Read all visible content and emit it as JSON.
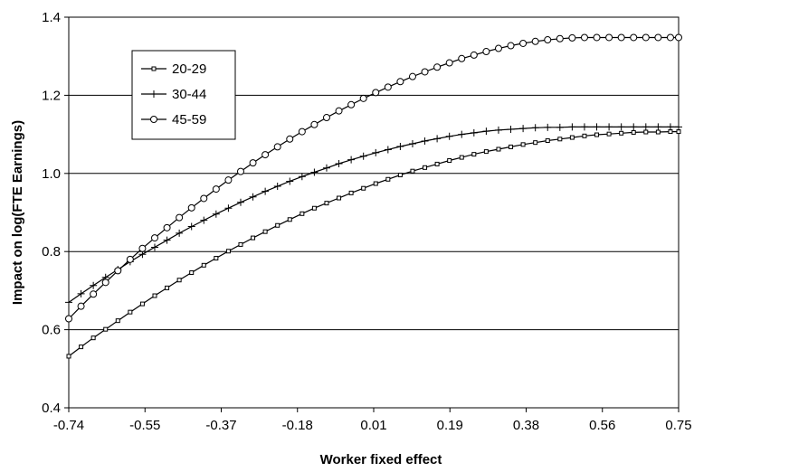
{
  "chart_data": {
    "type": "line",
    "title": "",
    "xlabel": "Worker fixed effect",
    "ylabel": "Impact on log(FTE Earnings)",
    "xlim": [
      -0.74,
      0.75
    ],
    "ylim": [
      0.4,
      1.4
    ],
    "x_ticks": [
      "-0.74",
      "-0.55",
      "-0.37",
      "-0.18",
      "0.01",
      "0.19",
      "0.38",
      "0.56",
      "0.75"
    ],
    "y_ticks": [
      "0.4",
      "0.6",
      "0.8",
      "1.0",
      "1.2",
      "1.4"
    ],
    "grid": "horizontal",
    "legend_position": "top-left",
    "x": [
      -0.74,
      -0.71,
      -0.68,
      -0.65,
      -0.62,
      -0.59,
      -0.56,
      -0.53,
      -0.5,
      -0.47,
      -0.44,
      -0.41,
      -0.38,
      -0.35,
      -0.32,
      -0.29,
      -0.26,
      -0.23,
      -0.2,
      -0.17,
      -0.14,
      -0.11,
      -0.08,
      -0.05,
      -0.02,
      0.01,
      0.04,
      0.07,
      0.1,
      0.13,
      0.16,
      0.19,
      0.22,
      0.25,
      0.28,
      0.31,
      0.34,
      0.37,
      0.4,
      0.43,
      0.46,
      0.49,
      0.52,
      0.55,
      0.58,
      0.61,
      0.64,
      0.67,
      0.7,
      0.73,
      0.75
    ],
    "series": [
      {
        "name": "20-29",
        "marker": "square",
        "values": [
          0.532,
          0.556,
          0.579,
          0.601,
          0.623,
          0.645,
          0.666,
          0.687,
          0.707,
          0.727,
          0.746,
          0.765,
          0.783,
          0.801,
          0.818,
          0.835,
          0.851,
          0.867,
          0.882,
          0.897,
          0.911,
          0.924,
          0.937,
          0.95,
          0.962,
          0.974,
          0.985,
          0.996,
          1.006,
          1.015,
          1.024,
          1.033,
          1.041,
          1.049,
          1.056,
          1.062,
          1.068,
          1.074,
          1.079,
          1.084,
          1.088,
          1.092,
          1.096,
          1.099,
          1.101,
          1.103,
          1.105,
          1.106,
          1.106,
          1.107,
          1.107
        ]
      },
      {
        "name": "30-44",
        "marker": "plus",
        "values": [
          0.67,
          0.692,
          0.713,
          0.734,
          0.754,
          0.774,
          0.793,
          0.811,
          0.829,
          0.847,
          0.864,
          0.88,
          0.896,
          0.911,
          0.926,
          0.94,
          0.954,
          0.967,
          0.98,
          0.992,
          1.003,
          1.014,
          1.025,
          1.035,
          1.044,
          1.053,
          1.061,
          1.069,
          1.076,
          1.083,
          1.089,
          1.095,
          1.1,
          1.104,
          1.108,
          1.111,
          1.113,
          1.115,
          1.117,
          1.118,
          1.118,
          1.119,
          1.119,
          1.119,
          1.119,
          1.119,
          1.119,
          1.119,
          1.119,
          1.119,
          1.119
        ]
      },
      {
        "name": "45-59",
        "marker": "circle",
        "values": [
          0.628,
          0.66,
          0.691,
          0.721,
          0.751,
          0.78,
          0.808,
          0.835,
          0.861,
          0.887,
          0.912,
          0.936,
          0.96,
          0.983,
          1.005,
          1.027,
          1.048,
          1.068,
          1.088,
          1.107,
          1.125,
          1.143,
          1.16,
          1.176,
          1.192,
          1.207,
          1.221,
          1.235,
          1.248,
          1.26,
          1.272,
          1.283,
          1.294,
          1.303,
          1.312,
          1.32,
          1.327,
          1.333,
          1.338,
          1.342,
          1.345,
          1.347,
          1.348,
          1.348,
          1.348,
          1.348,
          1.348,
          1.348,
          1.348,
          1.348,
          1.348
        ]
      }
    ]
  }
}
